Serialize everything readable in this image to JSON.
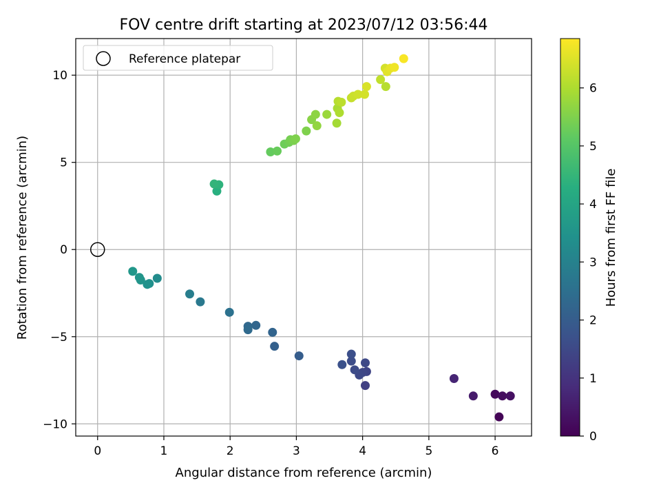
{
  "chart_data": {
    "type": "scatter",
    "title": "FOV centre drift starting at 2023/07/12 03:56:44",
    "xlabel": "Angular distance from reference (arcmin)",
    "ylabel": "Rotation from reference (arcmin)",
    "xlim": [
      -0.33,
      6.55
    ],
    "ylim": [
      -10.7,
      12.1
    ],
    "xticks": [
      0,
      1,
      2,
      3,
      4,
      5,
      6
    ],
    "yticks": [
      -10,
      -5,
      0,
      5,
      10
    ],
    "xtick_labels": [
      "0",
      "1",
      "2",
      "3",
      "4",
      "5",
      "6"
    ],
    "ytick_labels": [
      "−10",
      "−5",
      "0",
      "5",
      "10"
    ],
    "grid": true,
    "legend": {
      "position": "top-left",
      "entries": [
        "Reference platepar"
      ]
    },
    "reference_point": {
      "x": 0,
      "y": 0
    },
    "colorbar": {
      "label": "Hours from first FF file",
      "range": [
        0,
        6.85
      ],
      "ticks": [
        0,
        1,
        2,
        3,
        4,
        5,
        6
      ],
      "tick_labels": [
        "0",
        "1",
        "2",
        "3",
        "4",
        "5",
        "6"
      ],
      "colormap": "viridis"
    },
    "points": [
      {
        "x": 6.06,
        "y": -9.6,
        "c": 0.05
      },
      {
        "x": 6.0,
        "y": -8.3,
        "c": 0.15
      },
      {
        "x": 6.11,
        "y": -8.4,
        "c": 0.25
      },
      {
        "x": 6.23,
        "y": -8.4,
        "c": 0.3
      },
      {
        "x": 5.67,
        "y": -8.4,
        "c": 0.5
      },
      {
        "x": 5.38,
        "y": -7.4,
        "c": 0.7
      },
      {
        "x": 4.04,
        "y": -7.8,
        "c": 1.3
      },
      {
        "x": 4.06,
        "y": -7.0,
        "c": 1.4
      },
      {
        "x": 4.0,
        "y": -7.05,
        "c": 1.45
      },
      {
        "x": 3.95,
        "y": -7.2,
        "c": 1.5
      },
      {
        "x": 4.04,
        "y": -6.5,
        "c": 1.5
      },
      {
        "x": 3.88,
        "y": -6.9,
        "c": 1.55
      },
      {
        "x": 3.83,
        "y": -6.4,
        "c": 1.6
      },
      {
        "x": 3.83,
        "y": -6.0,
        "c": 1.65
      },
      {
        "x": 3.69,
        "y": -6.6,
        "c": 1.7
      },
      {
        "x": 3.04,
        "y": -6.1,
        "c": 2.0
      },
      {
        "x": 2.67,
        "y": -5.55,
        "c": 2.1
      },
      {
        "x": 2.64,
        "y": -4.75,
        "c": 2.2
      },
      {
        "x": 2.39,
        "y": -4.35,
        "c": 2.25
      },
      {
        "x": 2.27,
        "y": -4.4,
        "c": 2.3
      },
      {
        "x": 2.27,
        "y": -4.6,
        "c": 2.35
      },
      {
        "x": 1.99,
        "y": -3.6,
        "c": 2.55
      },
      {
        "x": 1.55,
        "y": -3.0,
        "c": 2.75
      },
      {
        "x": 1.39,
        "y": -2.55,
        "c": 2.9
      },
      {
        "x": 0.9,
        "y": -1.65,
        "c": 3.3
      },
      {
        "x": 0.78,
        "y": -1.95,
        "c": 3.4
      },
      {
        "x": 0.75,
        "y": -2.0,
        "c": 3.45
      },
      {
        "x": 0.65,
        "y": -1.75,
        "c": 3.5
      },
      {
        "x": 0.63,
        "y": -1.6,
        "c": 3.55
      },
      {
        "x": 0.53,
        "y": -1.25,
        "c": 3.6
      },
      {
        "x": 1.8,
        "y": 3.35,
        "c": 4.3
      },
      {
        "x": 1.83,
        "y": 3.72,
        "c": 4.4
      },
      {
        "x": 1.76,
        "y": 3.76,
        "c": 4.45
      },
      {
        "x": 2.61,
        "y": 5.6,
        "c": 5.2
      },
      {
        "x": 2.71,
        "y": 5.65,
        "c": 5.25
      },
      {
        "x": 2.82,
        "y": 6.05,
        "c": 5.3
      },
      {
        "x": 2.89,
        "y": 6.15,
        "c": 5.35
      },
      {
        "x": 2.91,
        "y": 6.3,
        "c": 5.4
      },
      {
        "x": 2.96,
        "y": 6.25,
        "c": 5.45
      },
      {
        "x": 2.99,
        "y": 6.35,
        "c": 5.5
      },
      {
        "x": 3.15,
        "y": 6.8,
        "c": 5.5
      },
      {
        "x": 3.23,
        "y": 7.45,
        "c": 5.6
      },
      {
        "x": 3.29,
        "y": 7.75,
        "c": 5.65
      },
      {
        "x": 3.31,
        "y": 7.1,
        "c": 5.7
      },
      {
        "x": 3.46,
        "y": 7.75,
        "c": 5.8
      },
      {
        "x": 3.61,
        "y": 7.25,
        "c": 5.9
      },
      {
        "x": 3.62,
        "y": 8.1,
        "c": 5.95
      },
      {
        "x": 3.65,
        "y": 7.85,
        "c": 6.0
      },
      {
        "x": 3.63,
        "y": 8.5,
        "c": 6.1
      },
      {
        "x": 3.68,
        "y": 8.45,
        "c": 6.15
      },
      {
        "x": 3.83,
        "y": 8.7,
        "c": 6.25
      },
      {
        "x": 3.86,
        "y": 8.8,
        "c": 6.3
      },
      {
        "x": 3.93,
        "y": 8.9,
        "c": 6.35
      },
      {
        "x": 4.03,
        "y": 8.9,
        "c": 6.4
      },
      {
        "x": 4.06,
        "y": 9.35,
        "c": 6.45
      },
      {
        "x": 4.27,
        "y": 9.75,
        "c": 6.2
      },
      {
        "x": 4.35,
        "y": 9.35,
        "c": 6.1
      },
      {
        "x": 4.34,
        "y": 10.4,
        "c": 6.4
      },
      {
        "x": 4.37,
        "y": 10.2,
        "c": 6.55
      },
      {
        "x": 4.42,
        "y": 10.4,
        "c": 6.6
      },
      {
        "x": 4.48,
        "y": 10.45,
        "c": 6.7
      },
      {
        "x": 4.62,
        "y": 10.95,
        "c": 6.8
      }
    ]
  }
}
